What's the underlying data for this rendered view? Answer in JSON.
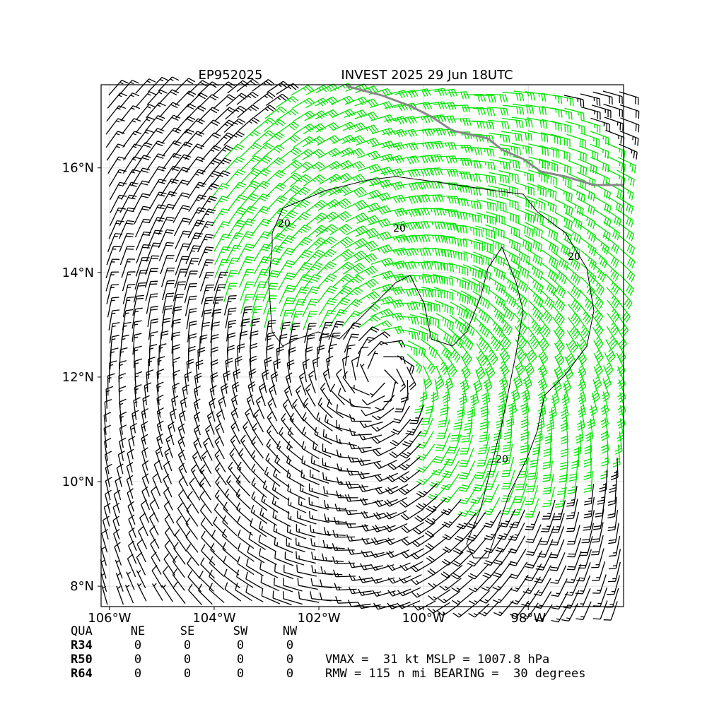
{
  "header": {
    "storm_id": "EP952025",
    "title": "INVEST 2025 29 Jun 18UTC"
  },
  "map": {
    "xlim": [
      -106.16,
      -96.18
    ],
    "ylim": [
      7.61,
      17.59
    ],
    "xticks": [
      {
        "value": -106,
        "label": "106°W"
      },
      {
        "value": -104,
        "label": "104°W"
      },
      {
        "value": -102,
        "label": "102°W"
      },
      {
        "value": -100,
        "label": "100°W"
      },
      {
        "value": -98,
        "label": "98°W"
      }
    ],
    "yticks": [
      {
        "value": 8,
        "label": "8°N"
      },
      {
        "value": 10,
        "label": "10°N"
      },
      {
        "value": 12,
        "label": "12°N"
      },
      {
        "value": 14,
        "label": "14°N"
      },
      {
        "value": 16,
        "label": "16°N"
      }
    ],
    "contour_label": "20"
  },
  "table": {
    "header": [
      "QUA",
      "NE",
      "SE",
      "SW",
      "NW"
    ],
    "rows": [
      [
        "R34",
        "0",
        "0",
        "0",
        "0"
      ],
      [
        "R50",
        "0",
        "0",
        "0",
        "0"
      ],
      [
        "R64",
        "0",
        "0",
        "0",
        "0"
      ]
    ]
  },
  "stats": [
    "VMAX =  31 kt MSLP = 1007.8 hPa",
    "RMW = 115 n mi BEARING =  30 degrees"
  ]
}
